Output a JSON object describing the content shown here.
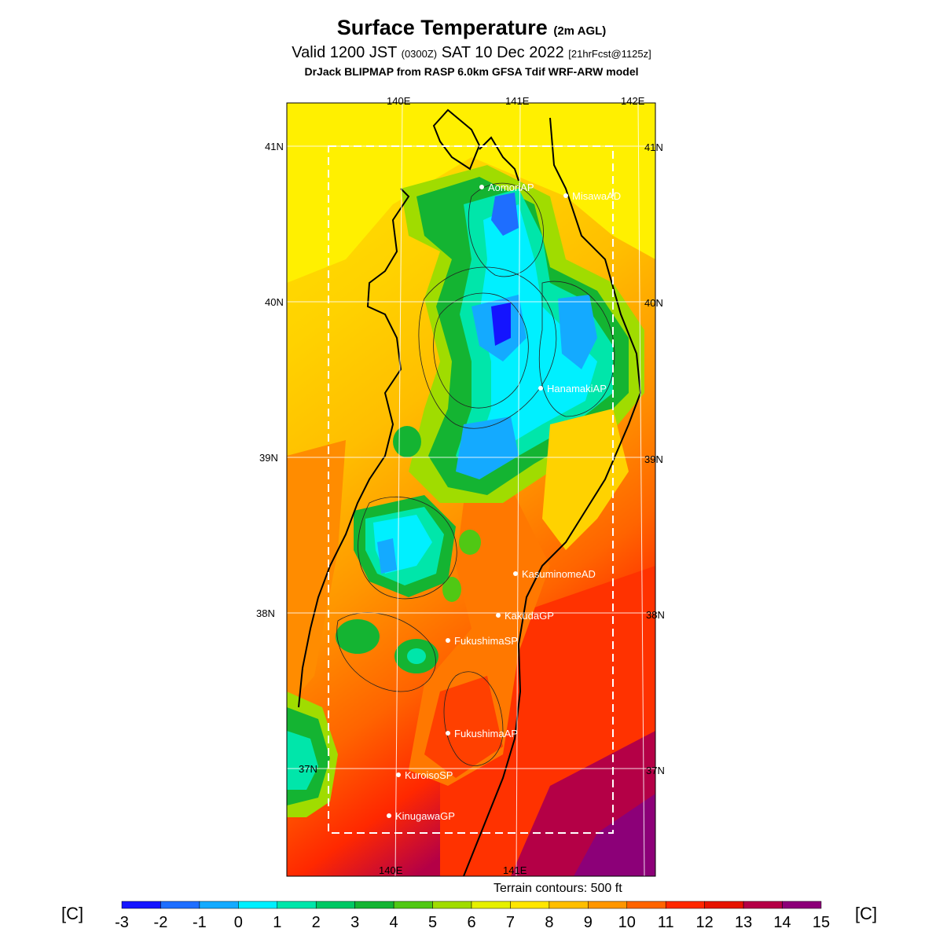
{
  "header": {
    "title_main": "Surface Temperature",
    "title_sub": "(2m AGL)",
    "valid_prefix": "Valid 1200 JST",
    "valid_zone": "(0300Z)",
    "valid_date": "SAT 10 Dec 2022",
    "forecast_tag": "[21hrFcst@1125z]",
    "model_line": "DrJack BLIPMAP from RASP 6.0km GFSA Tdif WRF-ARW model"
  },
  "map": {
    "lon_labels_top": [
      "140E",
      "141E",
      "142E"
    ],
    "lon_labels_bottom": [
      "140E",
      "141E"
    ],
    "lat_labels_left": [
      "41N",
      "40N",
      "39N",
      "38N",
      "37N"
    ],
    "lat_labels_right": [
      "41N",
      "40N",
      "39N",
      "38N",
      "37N"
    ],
    "stations": [
      {
        "name": "AomoriAP"
      },
      {
        "name": "MisawaAD"
      },
      {
        "name": "HanamakiAP"
      },
      {
        "name": "KasuminomeAD"
      },
      {
        "name": "KakudaGP"
      },
      {
        "name": "FukushimaSP"
      },
      {
        "name": "FukushimaAP"
      },
      {
        "name": "KuroisoSP"
      },
      {
        "name": "KinugawaGP"
      }
    ]
  },
  "terrain_note": "Terrain contours: 500 ft",
  "colorbar": {
    "unit_label": "[C]",
    "ticks": [
      "-3",
      "-2",
      "-1",
      "0",
      "1",
      "2",
      "3",
      "4",
      "5",
      "6",
      "7",
      "8",
      "9",
      "10",
      "11",
      "12",
      "13",
      "14",
      "15"
    ],
    "colors": [
      "#1414ff",
      "#1e6eff",
      "#14aaff",
      "#00f0ff",
      "#00e6aa",
      "#00c864",
      "#14b432",
      "#50c814",
      "#a0dc00",
      "#e6f000",
      "#ffe600",
      "#ffbe00",
      "#ff9600",
      "#ff6400",
      "#ff2800",
      "#e61400",
      "#b40046",
      "#8c0078"
    ]
  }
}
